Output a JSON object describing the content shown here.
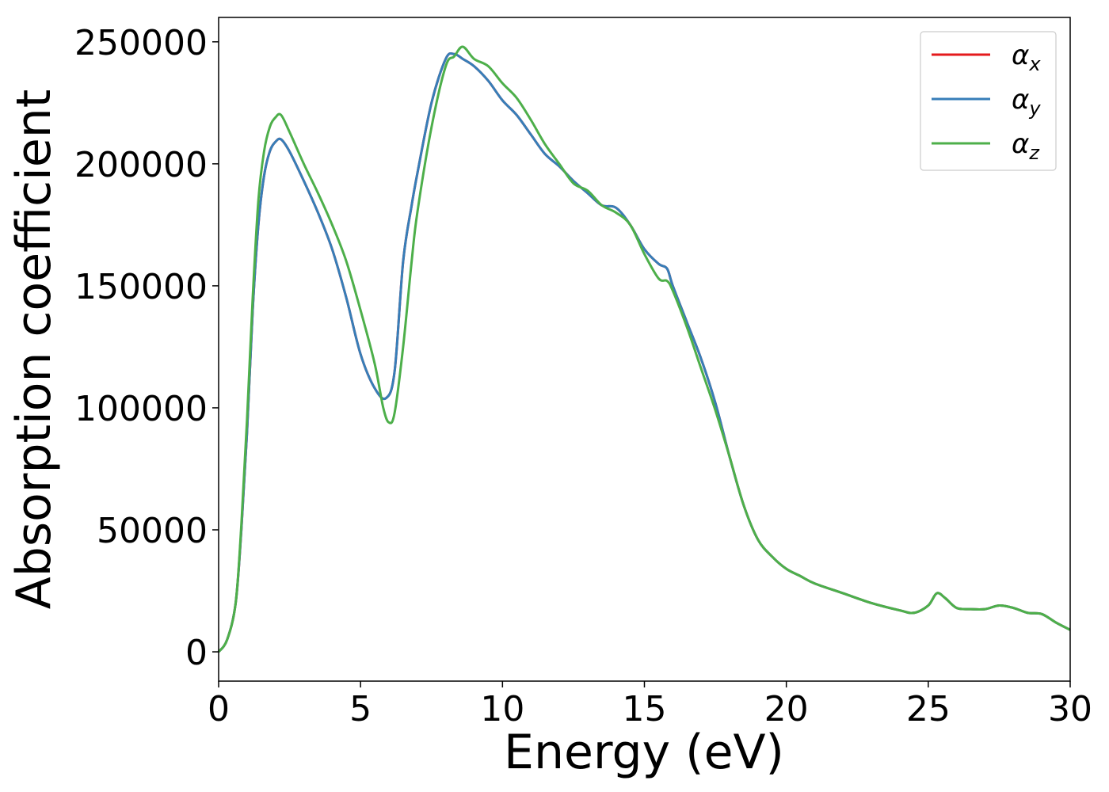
{
  "chart_data": {
    "type": "line",
    "xlabel": "Energy (eV)",
    "ylabel": "Absorption coefficient",
    "xlim": [
      0,
      30
    ],
    "ylim": [
      -12000,
      260000
    ],
    "xticks": [
      0,
      5,
      10,
      15,
      20,
      25,
      30
    ],
    "xtick_labels": [
      "0",
      "5",
      "10",
      "15",
      "20",
      "25",
      "30"
    ],
    "yticks": [
      0,
      50000,
      100000,
      150000,
      200000,
      250000
    ],
    "ytick_labels": [
      "0",
      "50000",
      "100000",
      "150000",
      "200000",
      "250000"
    ],
    "grid": false,
    "legend_position": "top-right",
    "series": [
      {
        "name": "α_x",
        "label_main": "α",
        "label_sub": "x",
        "color": "#e41a1c",
        "x": [
          0,
          0.3,
          0.6,
          0.8,
          1.0,
          1.2,
          1.4,
          1.6,
          1.8,
          2.0,
          2.2,
          2.5,
          3.0,
          3.5,
          4.0,
          4.5,
          5.0,
          5.5,
          5.9,
          6.2,
          6.5,
          6.8,
          7.0,
          7.5,
          8.0,
          8.3,
          8.6,
          9.0,
          9.5,
          10.0,
          10.5,
          11.0,
          11.5,
          12.0,
          12.5,
          13.0,
          13.5,
          14.0,
          14.5,
          15.0,
          15.5,
          15.8,
          16.0,
          16.5,
          17.0,
          17.5,
          18.0,
          18.5,
          19.0,
          19.5,
          20.0,
          20.5,
          21.0,
          22.0,
          23.0,
          24.0,
          24.5,
          25.0,
          25.3,
          25.6,
          26.0,
          26.5,
          27.0,
          27.5,
          28.0,
          28.5,
          29.0,
          29.5,
          30.0
        ],
        "y": [
          0,
          5000,
          20000,
          50000,
          90000,
          140000,
          175000,
          195000,
          205000,
          209000,
          210000,
          205000,
          193000,
          180000,
          165000,
          145000,
          122000,
          108000,
          104000,
          115000,
          160000,
          183000,
          196000,
          225000,
          243000,
          245000,
          243000,
          240000,
          234000,
          226000,
          220000,
          212000,
          204000,
          199000,
          193000,
          188000,
          183000,
          182000,
          175000,
          165000,
          159000,
          157000,
          150000,
          135000,
          120000,
          102000,
          80000,
          60000,
          46000,
          39000,
          34000,
          31000,
          28000,
          24000,
          20000,
          17000,
          16000,
          19000,
          24000,
          22000,
          18000,
          17500,
          17500,
          19000,
          18000,
          16000,
          15500,
          12000,
          9000
        ]
      },
      {
        "name": "α_y",
        "label_main": "α",
        "label_sub": "y",
        "color": "#377eb8",
        "x": [
          0,
          0.3,
          0.6,
          0.8,
          1.0,
          1.2,
          1.4,
          1.6,
          1.8,
          2.0,
          2.2,
          2.5,
          3.0,
          3.5,
          4.0,
          4.5,
          5.0,
          5.5,
          5.9,
          6.2,
          6.5,
          6.8,
          7.0,
          7.5,
          8.0,
          8.3,
          8.6,
          9.0,
          9.5,
          10.0,
          10.5,
          11.0,
          11.5,
          12.0,
          12.5,
          13.0,
          13.5,
          14.0,
          14.5,
          15.0,
          15.5,
          15.8,
          16.0,
          16.5,
          17.0,
          17.5,
          18.0,
          18.5,
          19.0,
          19.5,
          20.0,
          20.5,
          21.0,
          22.0,
          23.0,
          24.0,
          24.5,
          25.0,
          25.3,
          25.6,
          26.0,
          26.5,
          27.0,
          27.5,
          28.0,
          28.5,
          29.0,
          29.5,
          30.0
        ],
        "y": [
          0,
          5000,
          20000,
          50000,
          90000,
          140000,
          175000,
          195000,
          205000,
          209000,
          210000,
          205000,
          193000,
          180000,
          165000,
          145000,
          122000,
          108000,
          104000,
          115000,
          160000,
          183000,
          196000,
          225000,
          243000,
          245000,
          243000,
          240000,
          234000,
          226000,
          220000,
          212000,
          204000,
          199000,
          193000,
          188000,
          183000,
          182000,
          175000,
          165000,
          159000,
          157000,
          150000,
          135000,
          120000,
          102000,
          80000,
          60000,
          46000,
          39000,
          34000,
          31000,
          28000,
          24000,
          20000,
          17000,
          16000,
          19000,
          24000,
          22000,
          18000,
          17500,
          17500,
          19000,
          18000,
          16000,
          15500,
          12000,
          9000
        ]
      },
      {
        "name": "α_z",
        "label_main": "α",
        "label_sub": "z",
        "color": "#4daf4a",
        "x": [
          0,
          0.3,
          0.6,
          0.8,
          1.0,
          1.2,
          1.4,
          1.6,
          1.8,
          2.0,
          2.2,
          2.5,
          3.0,
          3.5,
          4.0,
          4.5,
          5.0,
          5.5,
          5.8,
          6.0,
          6.2,
          6.5,
          6.8,
          7.0,
          7.5,
          8.0,
          8.3,
          8.6,
          9.0,
          9.5,
          10.0,
          10.5,
          11.0,
          11.5,
          12.0,
          12.5,
          13.0,
          13.5,
          14.0,
          14.5,
          15.0,
          15.5,
          15.8,
          16.0,
          16.5,
          17.0,
          17.5,
          18.0,
          18.5,
          19.0,
          19.5,
          20.0,
          20.5,
          21.0,
          22.0,
          23.0,
          24.0,
          24.5,
          25.0,
          25.3,
          25.6,
          26.0,
          26.5,
          27.0,
          27.5,
          28.0,
          28.5,
          29.0,
          29.5,
          30.0
        ],
        "y": [
          0,
          5000,
          20000,
          52000,
          95000,
          145000,
          185000,
          205000,
          215000,
          219000,
          220000,
          213000,
          200000,
          188000,
          175000,
          160000,
          140000,
          118000,
          100000,
          94000,
          98000,
          125000,
          160000,
          180000,
          215000,
          240000,
          244000,
          248000,
          243000,
          240000,
          233000,
          227000,
          218000,
          208000,
          200000,
          192000,
          189000,
          183000,
          180000,
          175000,
          163000,
          153000,
          152000,
          148000,
          133000,
          116000,
          99000,
          80000,
          60000,
          46000,
          39000,
          34000,
          31000,
          28000,
          24000,
          20000,
          17000,
          16000,
          19000,
          24000,
          22000,
          18000,
          17500,
          17500,
          19000,
          18000,
          16000,
          15500,
          12000,
          9000
        ]
      }
    ]
  }
}
